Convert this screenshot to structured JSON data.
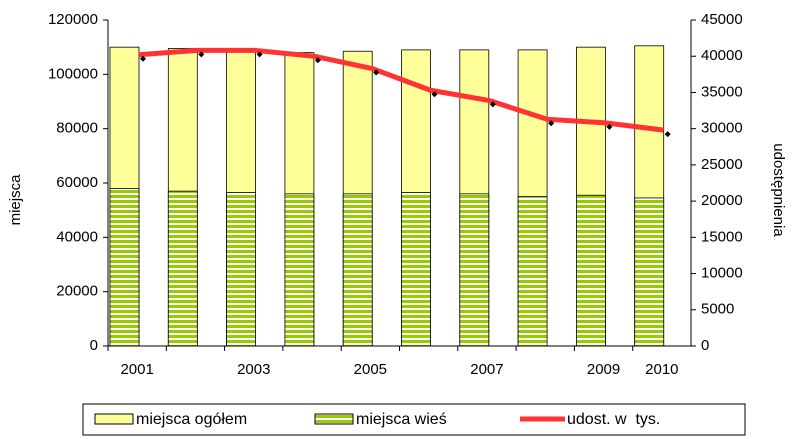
{
  "chart_data": {
    "type": "bar",
    "categories": [
      "2001",
      null,
      "2003",
      null,
      "2005",
      null,
      "2007",
      null,
      "2009",
      "2010"
    ],
    "series": [
      {
        "name": "miejsca ogółem",
        "color": "#ffff99",
        "values": [
          110000,
          109500,
          109500,
          108000,
          108500,
          109000,
          109000,
          109000,
          110000,
          110500
        ]
      },
      {
        "name": "miejsca wieś",
        "color": "#99cc00",
        "values": [
          58000,
          57000,
          56500,
          56000,
          56000,
          56500,
          56000,
          55000,
          55500,
          54500
        ]
      },
      {
        "name": "udost. w  tys.",
        "color": "#ff3333",
        "axis": "y2",
        "type": "line",
        "values": [
          40200,
          40800,
          40800,
          40000,
          38300,
          35300,
          33900,
          31300,
          30800,
          29800
        ]
      }
    ],
    "ylabel": "miejsca",
    "y2label": "udostępnienia",
    "ylim": [
      0,
      120000
    ],
    "yticks": [
      0,
      20000,
      40000,
      60000,
      80000,
      100000,
      120000
    ],
    "y2lim": [
      0,
      45000
    ],
    "y2ticks": [
      0,
      5000,
      10000,
      15000,
      20000,
      25000,
      30000,
      35000,
      40000,
      45000
    ],
    "legend": "bottom"
  }
}
